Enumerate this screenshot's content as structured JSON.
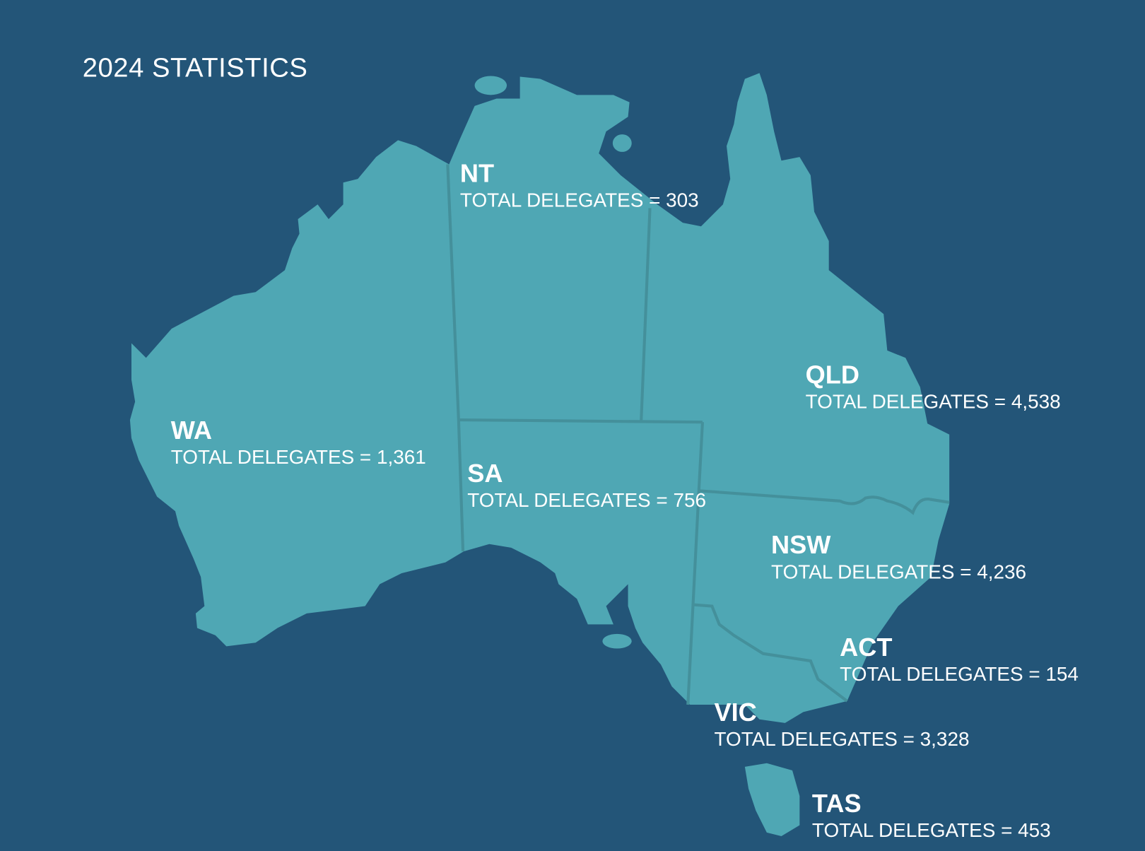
{
  "title": "2024 STATISTICS",
  "colors": {
    "background": "#235578",
    "land": "#4fa7b4",
    "border": "#44909b",
    "text": "#ffffff"
  },
  "regions": [
    {
      "name": "NT",
      "total": "TOTAL DELEGATES = 303",
      "value": 303
    },
    {
      "name": "QLD",
      "total": "TOTAL DELEGATES = 4,538",
      "value": 4538
    },
    {
      "name": "WA",
      "total": "TOTAL DELEGATES = 1,361",
      "value": 1361
    },
    {
      "name": "SA",
      "total": "TOTAL DELEGATES = 756",
      "value": 756
    },
    {
      "name": "NSW",
      "total": "TOTAL DELEGATES = 4,236",
      "value": 4236
    },
    {
      "name": "ACT",
      "total": "TOTAL DELEGATES = 154",
      "value": 154
    },
    {
      "name": "VIC",
      "total": "TOTAL DELEGATES = 3,328",
      "value": 3328
    },
    {
      "name": "TAS",
      "total": "TOTAL DELEGATES = 453",
      "value": 453
    }
  ]
}
